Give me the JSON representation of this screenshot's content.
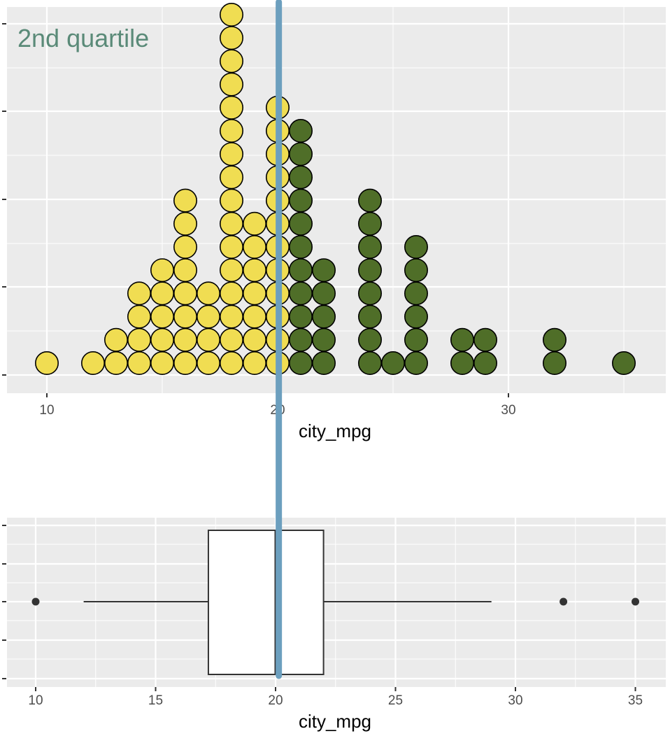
{
  "annotation": {
    "text": "2nd quartile",
    "color": "#5a8a78"
  },
  "colors": {
    "panel_bg": "#ebebeb",
    "grid": "#ffffff",
    "below_median": "#f0dd52",
    "above_median": "#4f6e28",
    "median_line": "#6c9fbe",
    "box_outline": "#333333"
  },
  "chart_data": [
    {
      "type": "dotplot",
      "xlabel": "city_mpg",
      "xlim": [
        8.5,
        36.5
      ],
      "x_ticks": [
        10,
        20,
        30
      ],
      "grid": true,
      "y_ticks_labeled": false,
      "split_value": 20,
      "dots": [
        {
          "x": 10,
          "count": 1,
          "group": "below"
        },
        {
          "x": 12,
          "count": 1,
          "group": "below"
        },
        {
          "x": 13,
          "count": 2,
          "group": "below"
        },
        {
          "x": 14,
          "count": 4,
          "group": "below"
        },
        {
          "x": 15,
          "count": 5,
          "group": "below"
        },
        {
          "x": 16,
          "count": 8,
          "group": "below"
        },
        {
          "x": 17,
          "count": 4,
          "group": "below"
        },
        {
          "x": 18,
          "count": 16,
          "group": "below"
        },
        {
          "x": 19,
          "count": 7,
          "group": "below"
        },
        {
          "x": 20,
          "count": 12,
          "group": "below"
        },
        {
          "x": 21,
          "count": 11,
          "group": "above"
        },
        {
          "x": 22,
          "count": 5,
          "group": "above"
        },
        {
          "x": 24,
          "count": 8,
          "group": "above"
        },
        {
          "x": 25,
          "count": 1,
          "group": "above"
        },
        {
          "x": 26,
          "count": 6,
          "group": "above"
        },
        {
          "x": 28,
          "count": 2,
          "group": "above"
        },
        {
          "x": 29,
          "count": 2,
          "group": "above"
        },
        {
          "x": 32,
          "count": 2,
          "group": "above"
        },
        {
          "x": 35,
          "count": 1,
          "group": "above"
        }
      ]
    },
    {
      "type": "boxplot",
      "xlabel": "city_mpg",
      "xlim": [
        9.2,
        35.8
      ],
      "x_ticks": [
        10,
        15,
        20,
        25,
        30,
        35
      ],
      "grid": true,
      "y_ticks_labeled": false,
      "q1": 17.2,
      "median": 20,
      "q3": 22,
      "whisker_low": 12,
      "whisker_high": 29,
      "outliers": [
        10,
        32,
        35
      ]
    }
  ],
  "median_line_value": 20.05
}
